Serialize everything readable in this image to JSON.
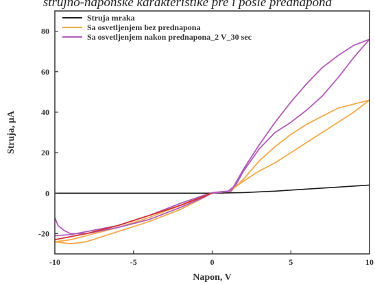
{
  "caption": "strujno-naponske karakteristike pre i posle prednapona",
  "chart_data": {
    "type": "line",
    "xlabel": "Napon, V",
    "ylabel": "Struja, µA",
    "xlim": [
      -10,
      10
    ],
    "ylim": [
      -30,
      90
    ],
    "xticks": [
      -10,
      -5,
      0,
      5,
      10
    ],
    "yticks": [
      -20,
      0,
      20,
      40,
      60,
      80
    ],
    "grid": false,
    "legend_position": "top-left",
    "series": [
      {
        "name": "Struja mraka",
        "color": "#1a1a1a",
        "x": [
          -10,
          -8,
          -6,
          -4,
          -2,
          0,
          2,
          4,
          6,
          8,
          10
        ],
        "y": [
          0,
          0,
          0,
          0,
          0,
          0,
          0.3,
          1,
          2,
          3,
          4
        ]
      },
      {
        "name": "Sa osvetljenjem bez prednapona",
        "color": "#f5a94a",
        "x": [
          -10,
          -9,
          -8,
          -6,
          -4,
          -2,
          -0.5,
          0,
          1,
          1.2,
          2,
          3,
          4,
          5,
          6,
          7,
          8,
          9,
          10,
          9,
          8,
          7,
          6,
          5,
          4,
          3,
          2,
          1.2,
          0,
          -0.5,
          -2,
          -4,
          -6,
          -8,
          -9,
          -10
        ],
        "y": [
          -24,
          -25,
          -24,
          -19,
          -14,
          -8,
          -2,
          0.3,
          0.8,
          1.5,
          6,
          11,
          15,
          20,
          25,
          30,
          35,
          40,
          46,
          44,
          42,
          38,
          34,
          29,
          23,
          16,
          7,
          1,
          0,
          -1,
          -6,
          -12,
          -17,
          -21,
          -23,
          -24
        ]
      },
      {
        "name": "Sa osvetljenjem nakon prednapona_2 V_30 sec",
        "color": "#b05bb8",
        "x": [
          -10,
          -9.8,
          -9.4,
          -9,
          -8,
          -6,
          -4,
          -2,
          -0.5,
          0,
          1,
          1.5,
          2,
          3,
          4,
          5,
          6,
          7,
          8,
          9,
          10,
          9,
          8,
          7,
          6,
          5,
          4,
          3,
          2,
          1.2,
          0,
          -0.5,
          -2,
          -4,
          -6,
          -8,
          -9,
          -10
        ],
        "y": [
          -12,
          -16,
          -18.5,
          -20,
          -20,
          -17,
          -13,
          -7,
          -2,
          0.3,
          1,
          4,
          11,
          22,
          30,
          35,
          41,
          48,
          57,
          67,
          76,
          73,
          68,
          62,
          54,
          45,
          35,
          24,
          12,
          1,
          0,
          -1,
          -5,
          -11,
          -16,
          -19,
          -20.5,
          -21
        ]
      },
      {
        "name": "",
        "color": "#d13030",
        "x": [
          -10,
          -8,
          -6,
          -4,
          -2,
          -1,
          0
        ],
        "y": [
          -23,
          -20,
          -16,
          -11,
          -6,
          -3,
          0
        ]
      }
    ]
  }
}
